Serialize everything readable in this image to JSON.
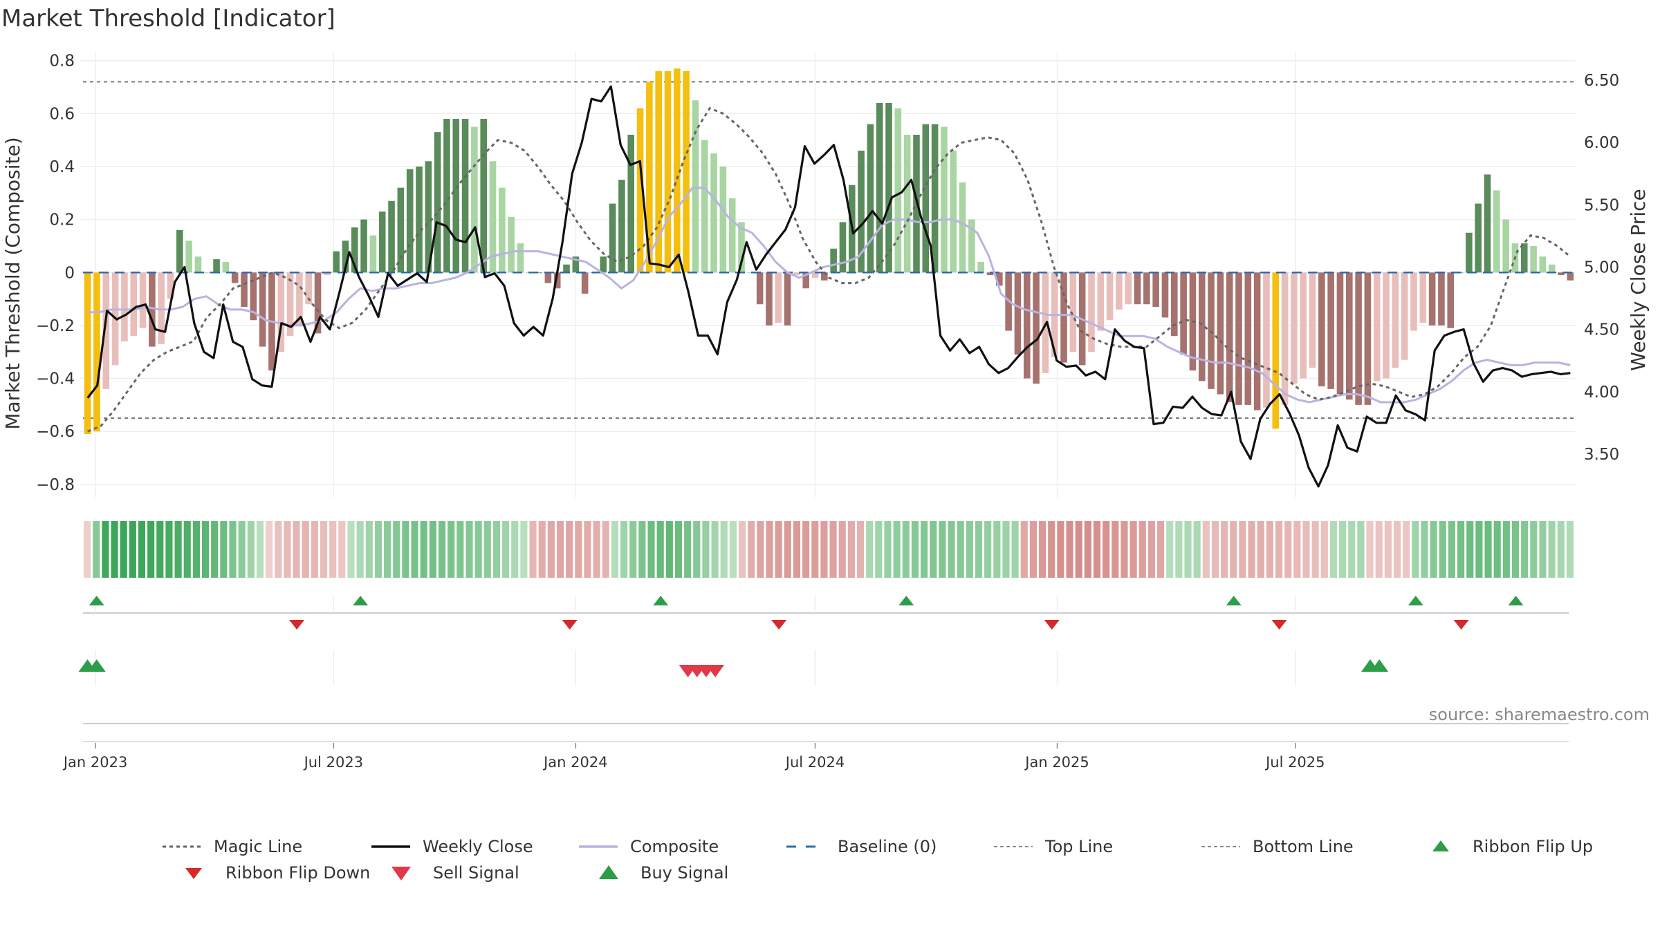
{
  "title": "Market Threshold [Indicator]",
  "source": "source: sharemaestro.com",
  "colors": {
    "strong_green": "#5a8b5a",
    "light_green": "#a8d5a2",
    "strong_red": "#a6726e",
    "light_red": "#e8bebb",
    "signal_yellow": "#f5bf0f",
    "weekly_close": "#111111",
    "composite": "#b9b3e0",
    "magic_line": "#666666",
    "baseline": "#2b6cb0",
    "flip_up": "#2e9d48",
    "flip_down": "#d42a2a",
    "buy": "#2e9d48",
    "sell": "#e0394a"
  },
  "chart_data": {
    "type": "bar+line",
    "title": "Market Threshold [Indicator]",
    "ylabel_left": "Market Threshold (Composite)",
    "ylabel_right": "Weekly Close Price",
    "ylim_left": [
      -0.85,
      0.82
    ],
    "ylim_right": [
      3.15,
      6.7
    ],
    "yticks_left": [
      "0.8",
      "0.6",
      "0.4",
      "0.2",
      "0",
      "−0.2",
      "−0.4",
      "−0.6",
      "−0.8"
    ],
    "yticks_left_values": [
      0.8,
      0.6,
      0.4,
      0.2,
      0,
      -0.2,
      -0.4,
      -0.6,
      -0.8
    ],
    "yticks_right": [
      "6.50",
      "6.00",
      "5.50",
      "5.00",
      "4.50",
      "4.00",
      "3.50"
    ],
    "yticks_right_values": [
      6.5,
      6.0,
      5.5,
      5.0,
      4.5,
      4.0,
      3.5
    ],
    "x_start": "2022-12-26",
    "x_step_days": 7,
    "xticks": [
      "Jan 2023",
      "Jul 2023",
      "Jan 2024",
      "Jul 2024",
      "Jan 2025",
      "Jul 2025"
    ],
    "xtick_dates": [
      "2023-01-01",
      "2023-07-01",
      "2024-01-01",
      "2024-07-01",
      "2025-01-01",
      "2025-07-01"
    ],
    "top_line": 0.72,
    "bottom_line": -0.55,
    "baseline": 0,
    "composite_bars": [
      -0.61,
      -0.6,
      -0.44,
      -0.35,
      -0.26,
      -0.24,
      -0.21,
      -0.28,
      -0.27,
      -0.1,
      0.16,
      0.12,
      0.06,
      0.0,
      0.05,
      0.04,
      -0.04,
      -0.13,
      -0.18,
      -0.28,
      -0.37,
      -0.3,
      -0.24,
      -0.2,
      -0.12,
      -0.23,
      -0.01,
      0.08,
      0.12,
      0.17,
      0.2,
      0.14,
      0.23,
      0.27,
      0.32,
      0.39,
      0.4,
      0.42,
      0.53,
      0.58,
      0.58,
      0.58,
      0.55,
      0.58,
      0.42,
      0.32,
      0.21,
      0.11,
      0.0,
      0.0,
      -0.04,
      -0.06,
      0.03,
      0.06,
      -0.08,
      0.0,
      0.06,
      0.26,
      0.35,
      0.52,
      0.62,
      0.72,
      0.76,
      0.76,
      0.77,
      0.76,
      0.65,
      0.5,
      0.45,
      0.4,
      0.28,
      0.19,
      0.0,
      -0.12,
      -0.2,
      -0.19,
      -0.2,
      -0.01,
      -0.06,
      -0.02,
      -0.03,
      0.09,
      0.19,
      0.33,
      0.46,
      0.56,
      0.64,
      0.64,
      0.62,
      0.52,
      0.52,
      0.56,
      0.56,
      0.55,
      0.46,
      0.34,
      0.2,
      0.04,
      -0.01,
      -0.05,
      -0.22,
      -0.31,
      -0.4,
      -0.42,
      -0.38,
      -0.32,
      -0.34,
      -0.3,
      -0.35,
      -0.3,
      -0.22,
      -0.18,
      -0.14,
      -0.12,
      -0.12,
      -0.12,
      -0.13,
      -0.17,
      -0.24,
      -0.31,
      -0.37,
      -0.41,
      -0.44,
      -0.46,
      -0.49,
      -0.5,
      -0.5,
      -0.52,
      -0.51,
      -0.59,
      -0.5,
      -0.42,
      -0.4,
      -0.36,
      -0.43,
      -0.44,
      -0.46,
      -0.48,
      -0.5,
      -0.5,
      -0.41,
      -0.4,
      -0.36,
      -0.33,
      -0.22,
      -0.19,
      -0.2,
      -0.2,
      -0.21,
      0.0,
      0.15,
      0.26,
      0.37,
      0.31,
      0.2,
      0.11,
      0.11,
      0.1,
      0.06,
      0.03,
      -0.01,
      -0.03
    ],
    "signal_bars": [
      0,
      1,
      60,
      61,
      62,
      63,
      64,
      65,
      129
    ],
    "weekly_close": [
      3.95,
      4.05,
      4.65,
      4.58,
      4.62,
      4.68,
      4.7,
      4.5,
      4.48,
      4.88,
      5.0,
      4.55,
      4.32,
      4.27,
      4.7,
      4.4,
      4.36,
      4.1,
      4.05,
      4.04,
      4.55,
      4.52,
      4.6,
      4.4,
      4.6,
      4.5,
      4.8,
      5.12,
      4.92,
      4.77,
      4.6,
      4.95,
      4.85,
      4.9,
      4.95,
      4.88,
      5.36,
      5.33,
      5.22,
      5.2,
      5.32,
      4.92,
      4.95,
      4.85,
      4.55,
      4.45,
      4.52,
      4.45,
      4.75,
      5.2,
      5.75,
      6.0,
      6.35,
      6.33,
      6.45,
      5.98,
      5.82,
      5.85,
      5.03,
      5.02,
      5.0,
      5.1,
      4.8,
      4.45,
      4.45,
      4.3,
      4.72,
      4.9,
      5.2,
      4.98,
      5.1,
      5.2,
      5.3,
      5.48,
      5.97,
      5.83,
      5.9,
      5.98,
      5.7,
      5.27,
      5.35,
      5.45,
      5.35,
      5.56,
      5.6,
      5.7,
      5.4,
      5.17,
      4.45,
      4.33,
      4.42,
      4.31,
      4.36,
      4.22,
      4.15,
      4.19,
      4.28,
      4.36,
      4.42,
      4.56,
      4.25,
      4.2,
      4.21,
      4.13,
      4.16,
      4.1,
      4.5,
      4.41,
      4.36,
      4.35,
      3.74,
      3.75,
      3.88,
      3.87,
      3.96,
      3.87,
      3.82,
      3.81,
      4.0,
      3.6,
      3.46,
      3.78,
      3.9,
      3.98,
      3.83,
      3.65,
      3.39,
      3.24,
      3.41,
      3.73,
      3.55,
      3.52,
      3.8,
      3.75,
      3.75,
      3.97,
      3.85,
      3.82,
      3.77,
      4.33,
      4.45,
      4.48,
      4.5,
      4.23,
      4.08,
      4.17,
      4.19,
      4.17,
      4.12,
      4.14,
      4.15,
      4.16,
      4.14,
      4.15
    ],
    "composite_line": [
      -0.15,
      -0.15,
      -0.14,
      -0.14,
      -0.14,
      -0.13,
      -0.14,
      -0.14,
      -0.13,
      -0.1,
      -0.09,
      -0.12,
      -0.14,
      -0.14,
      -0.15,
      -0.18,
      -0.19,
      -0.2,
      -0.2,
      -0.19,
      -0.18,
      -0.15,
      -0.1,
      -0.06,
      -0.07,
      -0.06,
      -0.06,
      -0.05,
      -0.04,
      -0.04,
      -0.03,
      -0.02,
      0.0,
      0.03,
      0.06,
      0.07,
      0.08,
      0.08,
      0.08,
      0.07,
      0.06,
      0.05,
      0.04,
      0.01,
      -0.02,
      -0.06,
      -0.03,
      0.04,
      0.12,
      0.21,
      0.26,
      0.32,
      0.32,
      0.27,
      0.21,
      0.17,
      0.15,
      0.1,
      0.04,
      0.0,
      -0.02,
      0.0,
      0.02,
      0.03,
      0.04,
      0.06,
      0.12,
      0.18,
      0.2,
      0.2,
      0.19,
      0.19,
      0.2,
      0.2,
      0.18,
      0.15,
      0.06,
      -0.08,
      -0.12,
      -0.14,
      -0.15,
      -0.16,
      -0.16,
      -0.16,
      -0.18,
      -0.2,
      -0.22,
      -0.24,
      -0.24,
      -0.24,
      -0.25,
      -0.28,
      -0.3,
      -0.32,
      -0.33,
      -0.34,
      -0.34,
      -0.35,
      -0.36,
      -0.38,
      -0.42,
      -0.46,
      -0.48,
      -0.49,
      -0.48,
      -0.47,
      -0.46,
      -0.46,
      -0.47,
      -0.49,
      -0.49,
      -0.49,
      -0.48,
      -0.46,
      -0.44,
      -0.41,
      -0.37,
      -0.34,
      -0.33,
      -0.34,
      -0.35,
      -0.35,
      -0.34,
      -0.34,
      -0.34,
      -0.35
    ],
    "magic_line": [
      -0.6,
      -0.58,
      -0.52,
      -0.45,
      -0.38,
      -0.33,
      -0.3,
      -0.28,
      -0.26,
      -0.17,
      -0.12,
      -0.06,
      -0.04,
      -0.02,
      0.0,
      -0.02,
      -0.05,
      -0.12,
      -0.18,
      -0.21,
      -0.19,
      -0.14,
      -0.07,
      0.0,
      0.08,
      0.15,
      0.2,
      0.26,
      0.33,
      0.39,
      0.45,
      0.5,
      0.49,
      0.46,
      0.4,
      0.33,
      0.27,
      0.19,
      0.12,
      0.07,
      0.04,
      0.06,
      0.1,
      0.17,
      0.28,
      0.42,
      0.54,
      0.62,
      0.6,
      0.56,
      0.51,
      0.45,
      0.37,
      0.26,
      0.13,
      0.04,
      -0.02,
      -0.04,
      -0.04,
      -0.02,
      0.04,
      0.11,
      0.2,
      0.3,
      0.39,
      0.45,
      0.49,
      0.5,
      0.51,
      0.5,
      0.45,
      0.35,
      0.2,
      0.02,
      -0.12,
      -0.22,
      -0.25,
      -0.27,
      -0.28,
      -0.28,
      -0.28,
      -0.24,
      -0.2,
      -0.18,
      -0.19,
      -0.23,
      -0.28,
      -0.32,
      -0.34,
      -0.36,
      -0.38,
      -0.42,
      -0.46,
      -0.48,
      -0.47,
      -0.45,
      -0.43,
      -0.42,
      -0.43,
      -0.45,
      -0.47,
      -0.46,
      -0.43,
      -0.38,
      -0.32,
      -0.28,
      -0.2,
      -0.06,
      0.08,
      0.14,
      0.13,
      0.1,
      0.06
    ]
  },
  "ribbon": {
    "values": [
      -0.1,
      0.42,
      0.78,
      0.79,
      0.8,
      0.8,
      0.79,
      0.78,
      0.76,
      0.75,
      0.72,
      0.7,
      0.67,
      0.63,
      0.6,
      0.55,
      0.48,
      0.4,
      0.3,
      0.18,
      -0.1,
      -0.2,
      -0.25,
      -0.28,
      -0.3,
      -0.28,
      -0.24,
      -0.2,
      -0.16,
      0.18,
      0.24,
      0.3,
      0.36,
      0.4,
      0.44,
      0.48,
      0.5,
      0.52,
      0.52,
      0.5,
      0.48,
      0.46,
      0.44,
      0.42,
      0.4,
      0.36,
      0.3,
      0.24,
      0.18,
      -0.28,
      -0.35,
      -0.38,
      -0.4,
      -0.4,
      -0.38,
      -0.36,
      -0.33,
      -0.3,
      0.2,
      0.3,
      0.4,
      0.48,
      0.55,
      0.58,
      0.6,
      0.56,
      0.5,
      0.42,
      0.35,
      0.28,
      0.22,
      0.18,
      -0.2,
      -0.35,
      -0.42,
      -0.45,
      -0.47,
      -0.48,
      -0.48,
      -0.47,
      -0.46,
      -0.45,
      -0.43,
      -0.4,
      -0.36,
      -0.32,
      0.25,
      0.3,
      0.35,
      0.38,
      0.4,
      0.42,
      0.44,
      0.45,
      0.45,
      0.44,
      0.42,
      0.4,
      0.38,
      0.36,
      0.34,
      0.32,
      0.3,
      -0.38,
      -0.45,
      -0.5,
      -0.54,
      -0.56,
      -0.57,
      -0.58,
      -0.58,
      -0.57,
      -0.55,
      -0.52,
      -0.5,
      -0.48,
      -0.45,
      -0.42,
      -0.4,
      0.2,
      0.22,
      0.24,
      0.25,
      -0.2,
      -0.25,
      -0.28,
      -0.3,
      -0.32,
      -0.33,
      -0.33,
      -0.32,
      -0.3,
      -0.28,
      -0.26,
      -0.24,
      -0.22,
      -0.2,
      0.22,
      0.24,
      0.25,
      0.26,
      -0.15,
      -0.18,
      -0.18,
      -0.18,
      -0.16,
      0.3,
      0.36,
      0.42,
      0.46,
      0.48,
      0.52,
      0.55,
      0.56,
      0.56,
      0.54,
      0.52,
      0.48,
      0.44,
      0.4,
      0.36,
      0.3,
      0.26,
      0.22
    ],
    "flip_up_indices": [
      1,
      30,
      63,
      90,
      126,
      146,
      157
    ],
    "flip_down_indices": [
      23,
      53,
      76,
      106,
      131,
      151
    ],
    "buy_indices": [
      0,
      1,
      141,
      142
    ],
    "sell_indices": [
      66,
      67,
      68,
      69
    ]
  },
  "legend": [
    {
      "label": "Magic Line",
      "icon": "dotted-line"
    },
    {
      "label": "Weekly Close",
      "icon": "solid-line"
    },
    {
      "label": "Composite",
      "icon": "lavender-line"
    },
    {
      "label": "Baseline (0)",
      "icon": "dashed-line"
    },
    {
      "label": "Top Line",
      "icon": "dotted-line"
    },
    {
      "label": "Bottom Line",
      "icon": "dotted-line"
    },
    {
      "label": "Ribbon Flip Up",
      "icon": "triangle-up"
    },
    {
      "label": "Ribbon Flip Down",
      "icon": "triangle-down"
    },
    {
      "label": "Sell Signal",
      "icon": "triangle-down"
    },
    {
      "label": "Buy Signal",
      "icon": "triangle-up"
    }
  ]
}
